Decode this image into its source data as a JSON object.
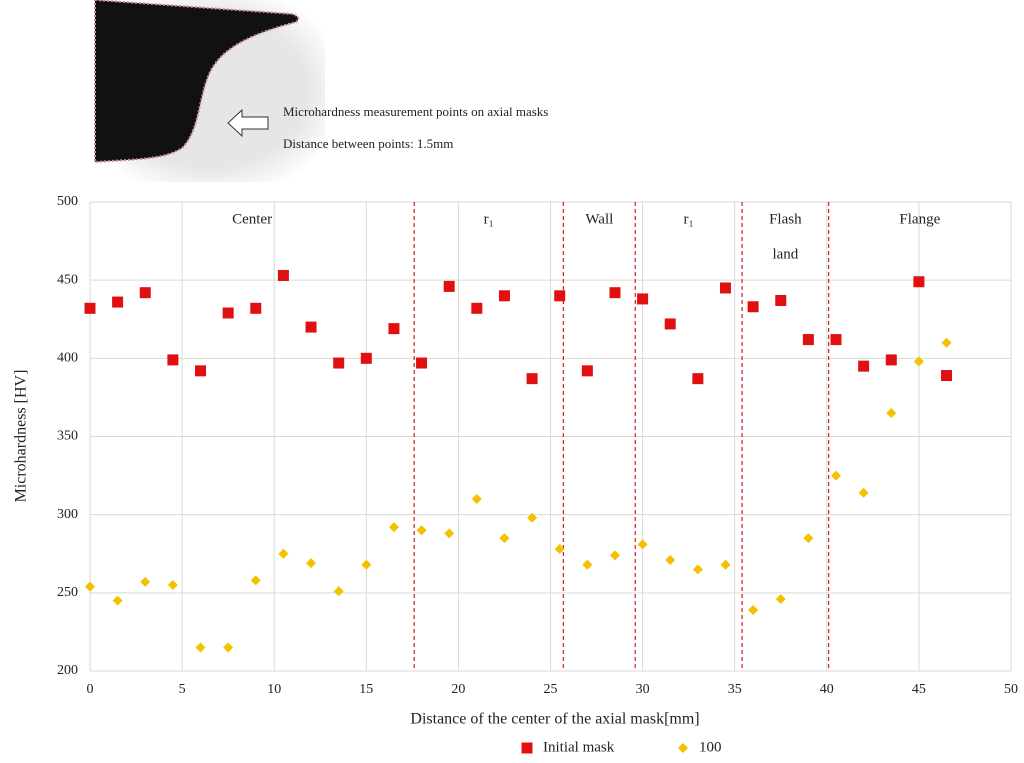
{
  "chart_data": {
    "type": "scatter",
    "note_lines": [
      "Microhardness measurement points on axial masks",
      "Distance between points: 1.5mm"
    ],
    "xlabel": "Distance of the center of the axial mask[mm]",
    "ylabel": "Microhardness [HV]",
    "x": [
      0,
      1.5,
      3,
      4.5,
      6,
      7.5,
      9,
      10.5,
      12,
      13.5,
      15,
      16.5,
      18,
      19.5,
      21,
      22.5,
      24,
      25.5,
      27,
      28.5,
      30,
      31.5,
      33,
      34.5,
      36,
      37.5,
      39,
      40.5,
      42,
      43.5,
      45,
      46.5
    ],
    "series": [
      {
        "name": "Initial mask",
        "color": "#e01010",
        "marker": "square",
        "values": [
          432,
          436,
          442,
          399,
          392,
          429,
          432,
          453,
          420,
          397,
          400,
          419,
          397,
          446,
          432,
          440,
          387,
          440,
          392,
          442,
          438,
          422,
          387,
          445,
          433,
          437,
          412,
          412,
          395,
          399,
          449,
          389
        ]
      },
      {
        "name": "100",
        "color": "#f5c000",
        "marker": "diamond",
        "values": [
          254,
          245,
          257,
          255,
          215,
          215,
          258,
          275,
          269,
          251,
          268,
          292,
          290,
          288,
          310,
          285,
          298,
          278,
          268,
          274,
          281,
          271,
          265,
          268,
          239,
          246,
          285,
          325,
          314,
          365,
          398,
          410
        ]
      }
    ],
    "dividers": [
      17.6,
      25.7,
      29.6,
      35.4,
      40.1
    ],
    "regions": [
      [
        "Center"
      ],
      [
        "r₁"
      ],
      [
        "Wall"
      ],
      [
        "r₁"
      ],
      [
        "Flash",
        "land"
      ],
      [
        "Flange"
      ]
    ],
    "xlim": [
      0,
      50
    ],
    "xticks": [
      0,
      5,
      10,
      15,
      20,
      25,
      30,
      35,
      40,
      45,
      50
    ],
    "ylim": [
      200,
      500
    ],
    "yticks": [
      200,
      250,
      300,
      350,
      400,
      450,
      500
    ],
    "grid": true
  }
}
